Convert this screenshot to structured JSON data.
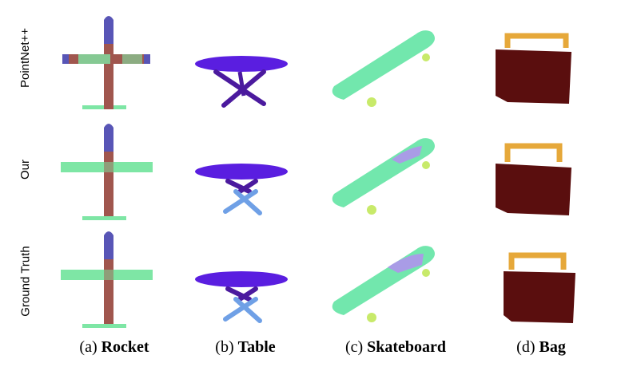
{
  "rows": [
    {
      "label": "PointNet++"
    },
    {
      "label": "Our"
    },
    {
      "label": "Ground Truth"
    }
  ],
  "columns": [
    {
      "letter": "(a)",
      "name": "Rocket"
    },
    {
      "letter": "(b)",
      "name": "Table"
    },
    {
      "letter": "(c)",
      "name": "Skateboard"
    },
    {
      "letter": "(d)",
      "name": "Bag"
    }
  ],
  "colors": {
    "rocket_body": "#a0564e",
    "rocket_wing": "#7ee6a5",
    "rocket_nose": "#5855b6",
    "table_top": "#5a1ee0",
    "table_leg_dark": "#4b1a9e",
    "table_leg_light": "#6fa0e6",
    "board_deck": "#72e7ad",
    "board_wheel": "#c8ea6a",
    "board_grip": "#a99ce6",
    "bag_body": "#5a0e0e",
    "bag_handle": "#e6a83a"
  }
}
